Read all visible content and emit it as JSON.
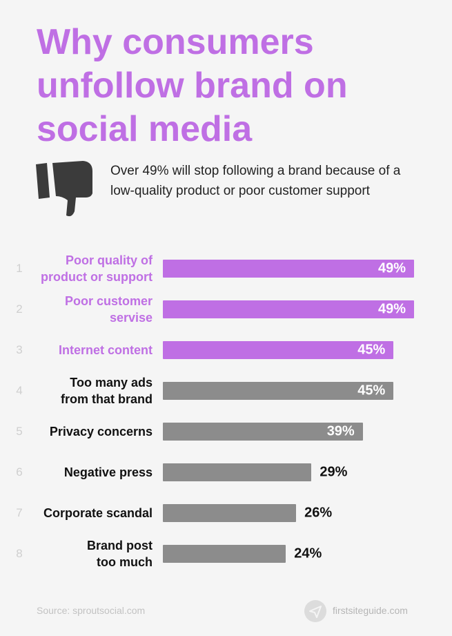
{
  "chart_data": {
    "type": "bar",
    "title": "Why consumers unfollow brand on social media",
    "subtitle": "Over 49% will stop following a brand because of a low-quality product or poor customer support",
    "ranks": [
      1,
      2,
      3,
      4,
      5,
      6,
      7,
      8
    ],
    "categories": [
      "Poor quality of\nproduct or support",
      "Poor customer\nservise",
      "Internet content",
      "Too many ads\nfrom that brand",
      "Privacy concerns",
      "Negative press",
      "Corporate scandal",
      "Brand post\ntoo much"
    ],
    "values": [
      49,
      49,
      45,
      45,
      39,
      29,
      26,
      24
    ],
    "value_labels": [
      "49%",
      "49%",
      "45%",
      "45%",
      "39%",
      "29%",
      "26%",
      "24%"
    ],
    "colors": [
      "#bf6fe4",
      "#bf6fe4",
      "#bf6fe4",
      "#8c8c8c",
      "#8c8c8c",
      "#8c8c8c",
      "#8c8c8c",
      "#8c8c8c"
    ],
    "label_colors": [
      "#bf6fe4",
      "#bf6fe4",
      "#bf6fe4",
      "#111111",
      "#111111",
      "#111111",
      "#111111",
      "#111111"
    ],
    "source": "Source: sproutsocial.com",
    "brand": "firstsiteguide.com"
  }
}
